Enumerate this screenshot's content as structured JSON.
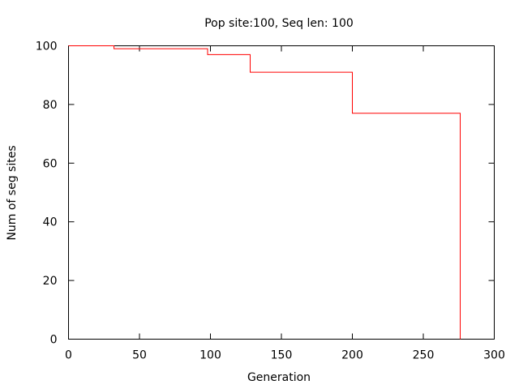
{
  "chart_data": {
    "type": "line",
    "title": "Pop site:100, Seq len: 100",
    "xlabel": "Generation",
    "ylabel": "Num of seg sites",
    "xlim": [
      0,
      300
    ],
    "ylim": [
      0,
      100
    ],
    "xticks": [
      0,
      50,
      100,
      150,
      200,
      250,
      300
    ],
    "yticks": [
      0,
      20,
      40,
      60,
      80,
      100
    ],
    "grid": false,
    "legend": "none",
    "series": [
      {
        "color": "#ff0000",
        "step": true,
        "x": [
          0,
          32,
          97,
          98,
          127,
          128,
          199,
          200,
          276,
          276
        ],
        "y": [
          100,
          99,
          99,
          97,
          97,
          91,
          91,
          77,
          77,
          0
        ]
      }
    ]
  }
}
